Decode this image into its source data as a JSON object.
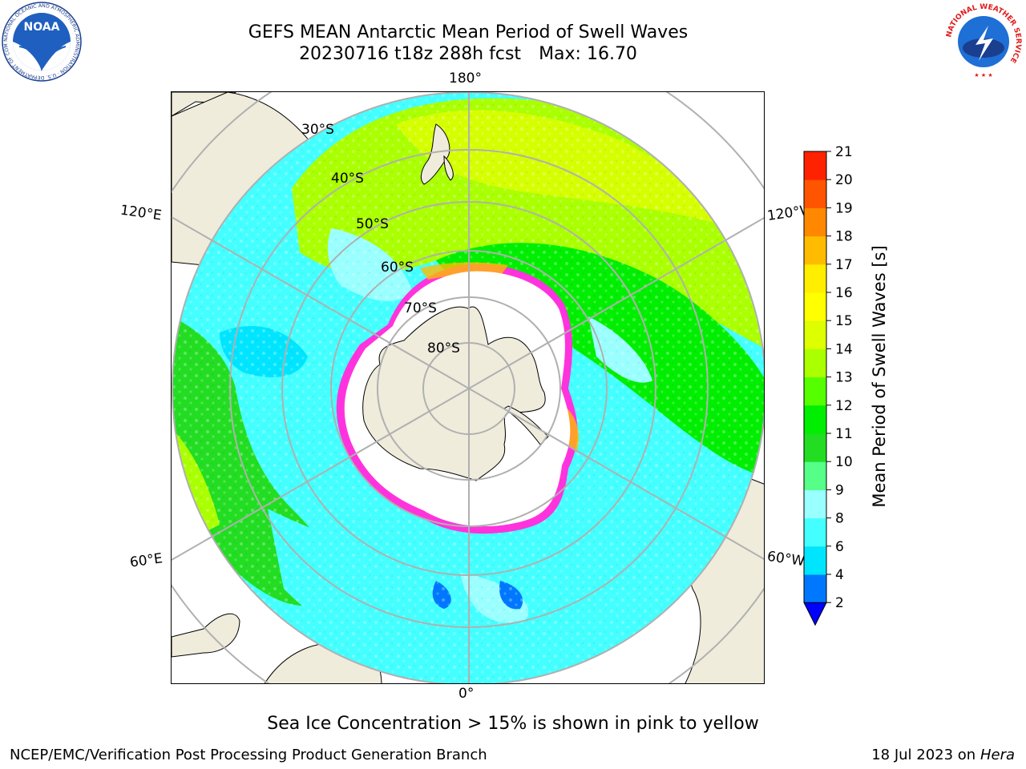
{
  "header": {
    "title_line1": "GEFS MEAN Antarctic Mean Period of Swell Waves",
    "title_line2_date": "20230716 t18z 288h fcst",
    "title_line2_max": "Max: 16.70"
  },
  "logos": {
    "noaa": "NOAA",
    "noaa_ring_text": "NATIONAL OCEANIC AND ATMOSPHERIC ADMINISTRATION · U.S. DEPARTMENT OF COMMERCE",
    "nws_ring_text": "NATIONAL WEATHER SERVICE"
  },
  "map": {
    "projection": "south-polar-stereographic",
    "longitude_labels": {
      "top": "180°",
      "bottom": "0°",
      "left_upper": "120°E",
      "left_lower": "60°E",
      "right_upper": "120°W",
      "right_lower": "60°W"
    },
    "latitude_labels": [
      "30°S",
      "40°S",
      "50°S",
      "60°S",
      "70°S",
      "80°S"
    ],
    "colors": {
      "land": "#efecdc",
      "ice_free_interior": "#ffffff",
      "sea_ice_edge": "#ff33dd",
      "grid": "#b0b0b0"
    }
  },
  "colorbar": {
    "label": "Mean Period of Swell Waves [s]",
    "ticks": [
      "2",
      "4",
      "6",
      "8",
      "9",
      "10",
      "11",
      "12",
      "13",
      "14",
      "15",
      "16",
      "17",
      "18",
      "19",
      "20",
      "21"
    ],
    "colors": [
      "#0077ff",
      "#00e5ff",
      "#44ffff",
      "#99ffff",
      "#55ff88",
      "#22dd22",
      "#00ee00",
      "#55ff00",
      "#aaff00",
      "#ddff00",
      "#ffff00",
      "#ffee00",
      "#ffbb00",
      "#ff8800",
      "#ff5500",
      "#ff2200"
    ],
    "extend_color": "#0000ff"
  },
  "footer": {
    "ice_note": "Sea Ice Concentration > 15% is shown in pink to yellow",
    "credit": "NCEP/EMC/Verification Post Processing Product Generation Branch",
    "date": "18 Jul 2023 on ",
    "machine": "Hera"
  }
}
